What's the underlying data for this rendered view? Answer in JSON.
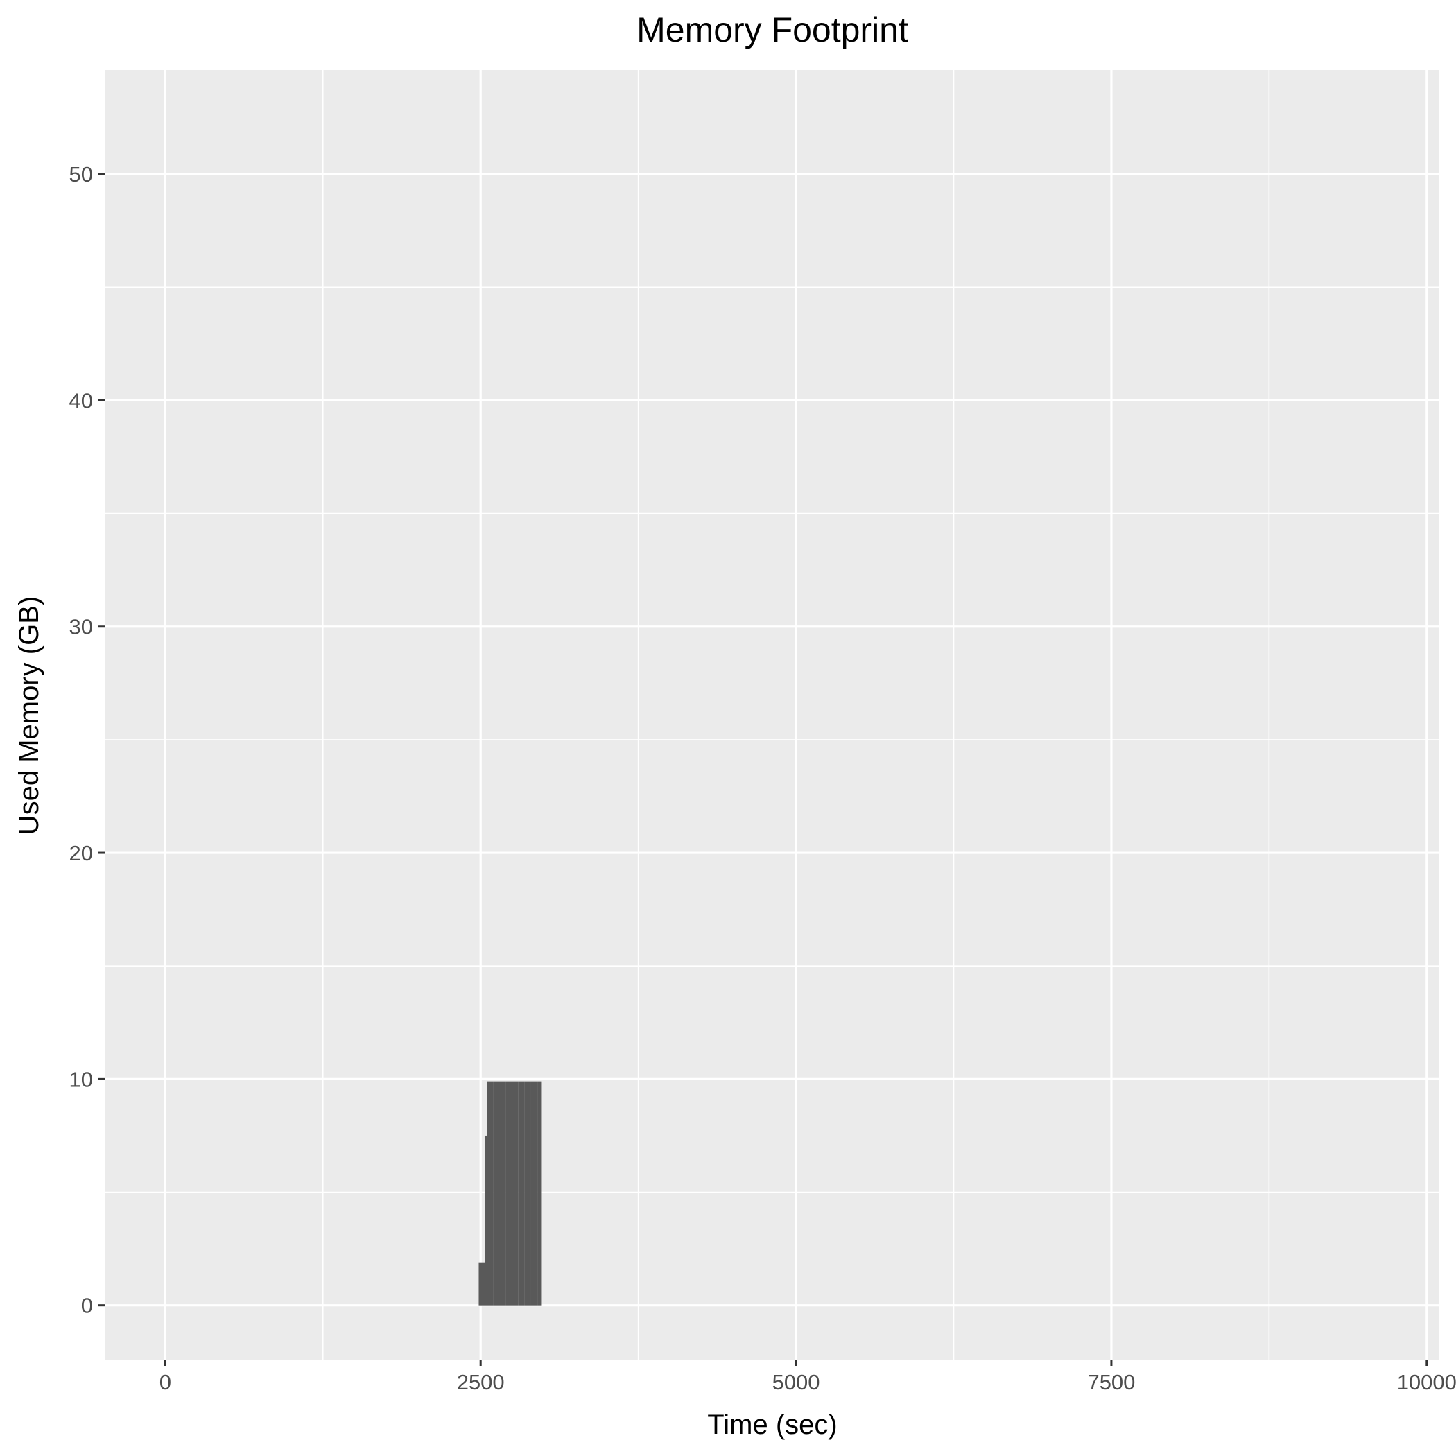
{
  "chart_data": {
    "type": "bar",
    "title": "Memory Footprint",
    "xlabel": "Time (sec)",
    "ylabel": "Used Memory (GB)",
    "xlim": [
      -480,
      10100
    ],
    "ylim": [
      -2.4,
      54.6
    ],
    "x_ticks": [
      0,
      2500,
      5000,
      7500,
      10000
    ],
    "x_tick_labels": [
      "0",
      "2500",
      "5000",
      "7500",
      "10000"
    ],
    "y_ticks": [
      0,
      10,
      20,
      30,
      40,
      50
    ],
    "y_tick_labels": [
      "0",
      "10",
      "20",
      "30",
      "40",
      "50"
    ],
    "grid": true,
    "background": "#ebebeb",
    "bar_color": "#595959",
    "series": [
      {
        "x_start": [
          2485,
          2535,
          2550,
          2600,
          2650,
          2700,
          2750,
          2800,
          2850,
          2900,
          2950
        ],
        "x_end": [
          2535,
          2550,
          2600,
          2650,
          2700,
          2750,
          2800,
          2850,
          2900,
          2950,
          2985
        ],
        "values": [
          1.9,
          7.5,
          9.9,
          9.9,
          9.9,
          9.9,
          9.9,
          9.9,
          9.9,
          9.9,
          9.9
        ]
      }
    ]
  }
}
